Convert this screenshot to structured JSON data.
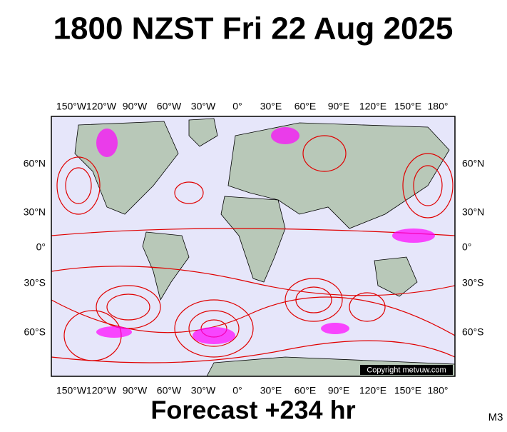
{
  "title": "1800 NZST Fri 22 Aug 2025",
  "longitude_labels": [
    "150°W",
    "120°W",
    "90°W",
    "60°W",
    "30°W",
    "0°",
    "30°E",
    "60°E",
    "90°E",
    "120°E",
    "150°E",
    "180°"
  ],
  "latitude_labels": [
    "60°N",
    "30°N",
    "0°",
    "30°S",
    "60°S"
  ],
  "copyright": "Copyright metvuw.com",
  "footer": "Forecast +234 hr",
  "model": "M3"
}
